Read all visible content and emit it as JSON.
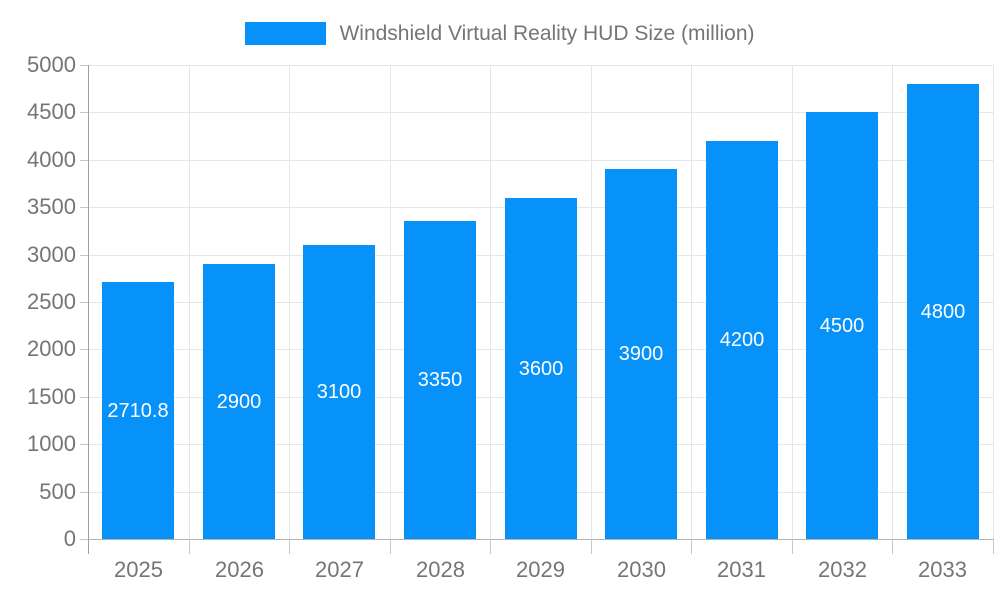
{
  "legend": {
    "label": "Windshield Virtual Reality HUD Size (million)"
  },
  "chart_data": {
    "type": "bar",
    "title": "Windshield Virtual Reality HUD Size (million)",
    "series_name": "Windshield Virtual Reality HUD Size (million)",
    "categories": [
      "2025",
      "2026",
      "2027",
      "2028",
      "2029",
      "2030",
      "2031",
      "2032",
      "2033"
    ],
    "values": [
      2710.8,
      2900,
      3100,
      3350,
      3600,
      3900,
      4200,
      4500,
      4800
    ],
    "data_labels": [
      "2710.8",
      "2900",
      "3100",
      "3350",
      "3600",
      "3900",
      "4200",
      "4500",
      "4800"
    ],
    "xlabel": "",
    "ylabel": "",
    "ylim": [
      0,
      5000
    ],
    "ytick_step": 500,
    "ytick_labels": [
      "0",
      "500",
      "1000",
      "1500",
      "2000",
      "2500",
      "3000",
      "3500",
      "4000",
      "4500",
      "5000"
    ],
    "grid": true,
    "legend_position": "top",
    "colors": {
      "bar": "#0692f8",
      "bar_label": "#ffffff",
      "axis_text": "#757575",
      "legend_text": "#757575",
      "gridline": "#e6e6e6",
      "axis_line": "#9e9e9e",
      "baseline": "#b3b3b3",
      "tick": "#c6c6c6",
      "background": "#ffffff"
    }
  }
}
